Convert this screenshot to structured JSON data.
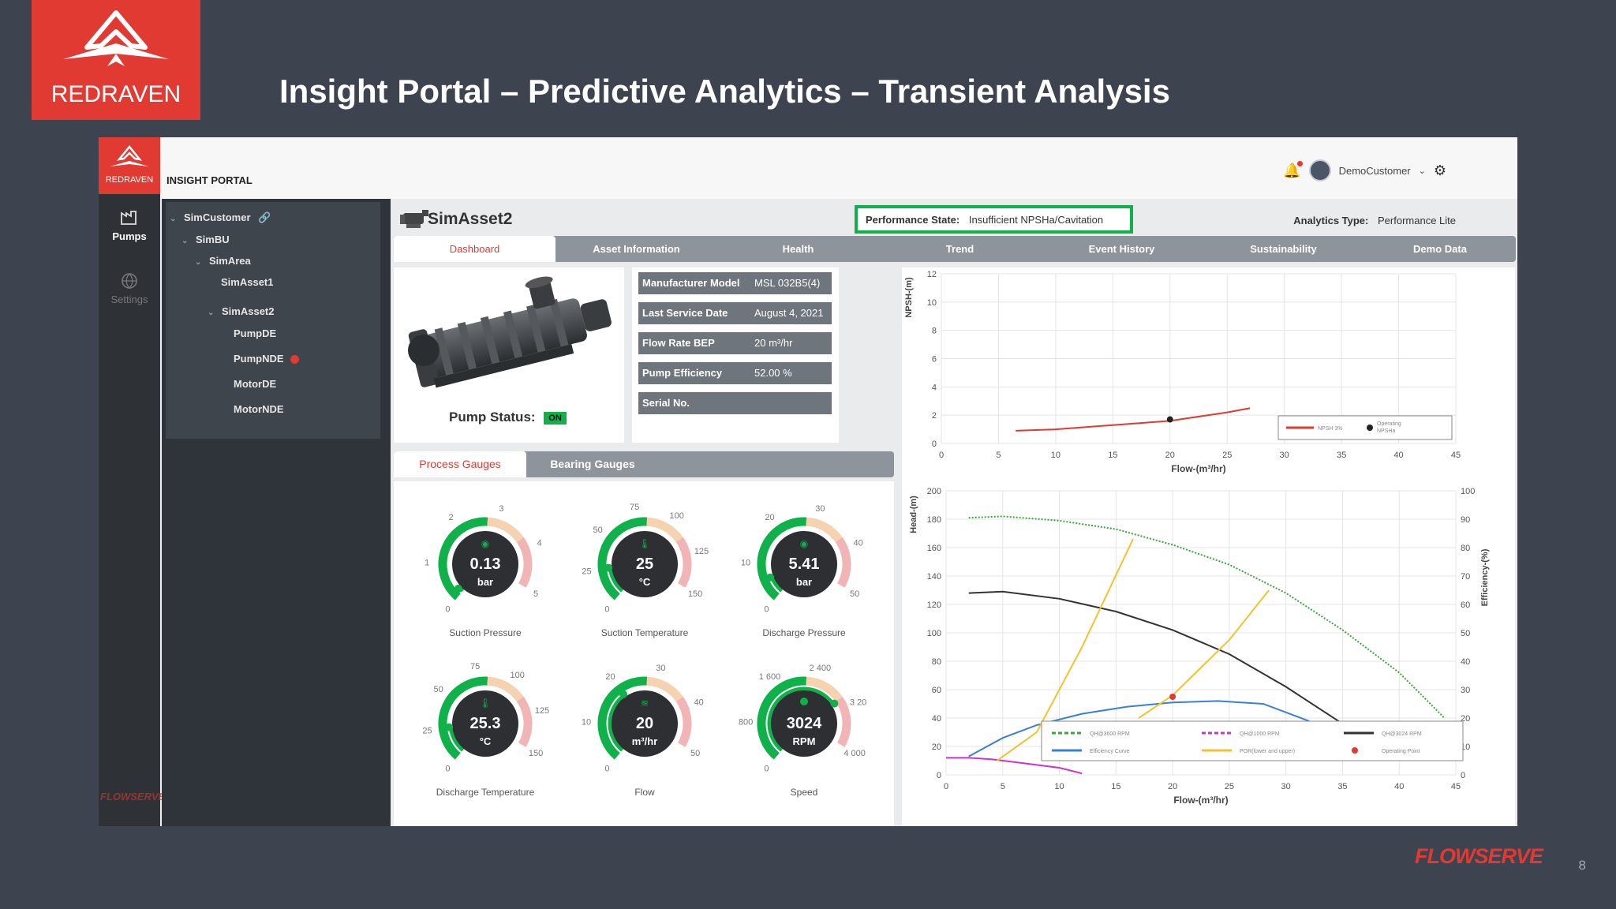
{
  "slide": {
    "title": "Insight Portal – Predictive Analytics – Transient Analysis",
    "logo_text": "REDRAVEN",
    "footer_logo": "FLOWSERVE",
    "page_number": "8"
  },
  "app": {
    "rail_logo": "REDRAVEN",
    "portal_label": "INSIGHT PORTAL",
    "rail_items": [
      {
        "label": "Pumps",
        "icon": "factory-icon"
      },
      {
        "label": "Settings",
        "icon": "globe-icon"
      }
    ],
    "rail_footer": "FLOWSERVE",
    "user_name": "DemoCustomer"
  },
  "tree": {
    "customer": "SimCustomer",
    "bu": "SimBU",
    "area": "SimArea",
    "asset1": "SimAsset1",
    "asset2": "SimAsset2",
    "children": [
      "PumpDE",
      "PumpNDE",
      "MotorDE",
      "MotorNDE"
    ]
  },
  "asset": {
    "name": "SimAsset2",
    "performance_label": "Performance State:",
    "performance_value": "Insufficient NPSHa/Cavitation",
    "analytics_label": "Analytics Type:",
    "analytics_value": "Performance Lite",
    "pump_status_label": "Pump Status:",
    "pump_status_value": "ON"
  },
  "tabs": [
    "Dashboard",
    "Asset Information",
    "Health",
    "Trend",
    "Event History",
    "Sustainability",
    "Demo Data"
  ],
  "info": [
    {
      "label": "Manufacturer Model",
      "value": "MSL 032B5(4)"
    },
    {
      "label": "Last Service Date",
      "value": "August 4, 2021"
    },
    {
      "label": "Flow Rate BEP",
      "value": "20 m³/hr"
    },
    {
      "label": "Pump Efficiency",
      "value": "52.00 %"
    },
    {
      "label": "Serial No.",
      "value": ""
    }
  ],
  "gauge_tabs": [
    "Process Gauges",
    "Bearing Gauges"
  ],
  "gauges": [
    {
      "value": "0.13",
      "unit": "bar",
      "label": "Suction Pressure",
      "ticks": [
        "0",
        "1",
        "2",
        "3",
        "4",
        "5"
      ],
      "fraction": 0.03,
      "icon": "gauge-icon"
    },
    {
      "value": "25",
      "unit": "°C",
      "label": "Suction Temperature",
      "ticks": [
        "0",
        "25",
        "50",
        "75",
        "100",
        "125",
        "150"
      ],
      "fraction": 0.17,
      "icon": "thermometer-icon"
    },
    {
      "value": "5.41",
      "unit": "bar",
      "label": "Discharge Pressure",
      "ticks": [
        "0",
        "10",
        "20",
        "30",
        "40",
        "50"
      ],
      "fraction": 0.11,
      "icon": "gauge-icon"
    },
    {
      "value": "25.3",
      "unit": "°C",
      "label": "Discharge Temperature",
      "ticks": [
        "0",
        "25",
        "50",
        "75",
        "100",
        "125",
        "150"
      ],
      "fraction": 0.17,
      "icon": "thermometer-icon"
    },
    {
      "value": "20",
      "unit": "m³/hr",
      "label": "Flow",
      "ticks": [
        "0",
        "10",
        "20",
        "30",
        "40",
        "50"
      ],
      "fraction": 0.4,
      "icon": "waves-icon"
    },
    {
      "value": "3024",
      "unit": "RPM",
      "label": "Speed",
      "ticks": [
        "0",
        "800",
        "1 600",
        "2 400",
        "3 20",
        "4 000"
      ],
      "fraction": 0.756,
      "icon": "dot-icon"
    }
  ],
  "colors": {
    "brand_red": "#e03a32",
    "gauge_green": "#10b04a",
    "gauge_warn": "#f5d2b0",
    "gauge_alarm": "#f2b5b5"
  },
  "chart_data": [
    {
      "type": "line",
      "xlabel": "Flow-(m³/hr)",
      "ylabel": "NPSH-(m)",
      "xlim": [
        0,
        45
      ],
      "ylim": [
        0,
        12
      ],
      "x_ticks": [
        0,
        5,
        10,
        15,
        20,
        25,
        30,
        35,
        40,
        45
      ],
      "y_ticks": [
        0,
        2,
        4,
        6,
        8,
        10,
        12
      ],
      "grid": true,
      "legend": "bottom-right",
      "series": [
        {
          "name": "NPSH 3%",
          "color": "#e03a32",
          "x": [
            6.5,
            10,
            15,
            20,
            25,
            27
          ],
          "y": [
            0.9,
            1.0,
            1.3,
            1.6,
            2.2,
            2.5
          ]
        },
        {
          "name": "Operating NPSHa",
          "color": "#222222",
          "marker": "point",
          "x": [
            20
          ],
          "y": [
            1.7
          ]
        }
      ]
    },
    {
      "type": "line",
      "xlabel": "Flow-(m³/hr)",
      "ylabel": "Head-(m)",
      "y2label": "Efficiency-(%)",
      "xlim": [
        0,
        45
      ],
      "ylim": [
        0,
        200
      ],
      "y2lim": [
        0,
        100
      ],
      "x_ticks": [
        0,
        5,
        10,
        15,
        20,
        25,
        30,
        35,
        40,
        45
      ],
      "y_ticks": [
        0,
        20,
        40,
        60,
        80,
        100,
        120,
        140,
        160,
        180,
        200
      ],
      "y2_ticks": [
        0,
        10,
        20,
        30,
        40,
        50,
        60,
        70,
        80,
        90,
        100
      ],
      "grid": true,
      "legend": "bottom",
      "series": [
        {
          "name": "QH@3600 RPM",
          "color": "#3aa63a",
          "style": "dotted",
          "x": [
            2,
            5,
            10,
            15,
            20,
            25,
            30,
            35,
            40,
            44
          ],
          "y": [
            181,
            182,
            179,
            173,
            162,
            148,
            128,
            102,
            72,
            40
          ]
        },
        {
          "name": "QH@1000 RPM",
          "color": "#cc33cc",
          "style": "solid",
          "x": [
            0,
            2,
            4,
            6,
            8,
            10,
            12
          ],
          "y": [
            12,
            12,
            11,
            9,
            7,
            5,
            1
          ]
        },
        {
          "name": "QH@3024 RPM",
          "color": "#333333",
          "style": "solid",
          "x": [
            2,
            5,
            10,
            15,
            20,
            25,
            30,
            35
          ],
          "y": [
            128,
            129,
            124,
            115,
            102,
            85,
            62,
            36
          ]
        },
        {
          "name": "Efficiency Curve",
          "color": "#3a7fd5",
          "style": "solid",
          "x": [
            2,
            5,
            8,
            12,
            16,
            20,
            24,
            28,
            32,
            35
          ],
          "y": [
            13,
            26,
            35,
            43,
            48,
            51,
            52,
            50,
            38,
            20
          ]
        },
        {
          "name": "POR(lower and upper)",
          "color": "#f2c230",
          "style": "solid",
          "segments": [
            {
              "x": [
                4.5,
                8,
                12,
                16.5
              ],
              "y": [
                10,
                30,
                90,
                166
              ]
            },
            {
              "x": [
                17,
                20,
                25,
                28.5
              ],
              "y": [
                40,
                56,
                95,
                130
              ]
            }
          ]
        },
        {
          "name": "Operating Point",
          "color": "#e03a32",
          "marker": "point",
          "x": [
            20
          ],
          "y": [
            55
          ]
        }
      ]
    }
  ]
}
